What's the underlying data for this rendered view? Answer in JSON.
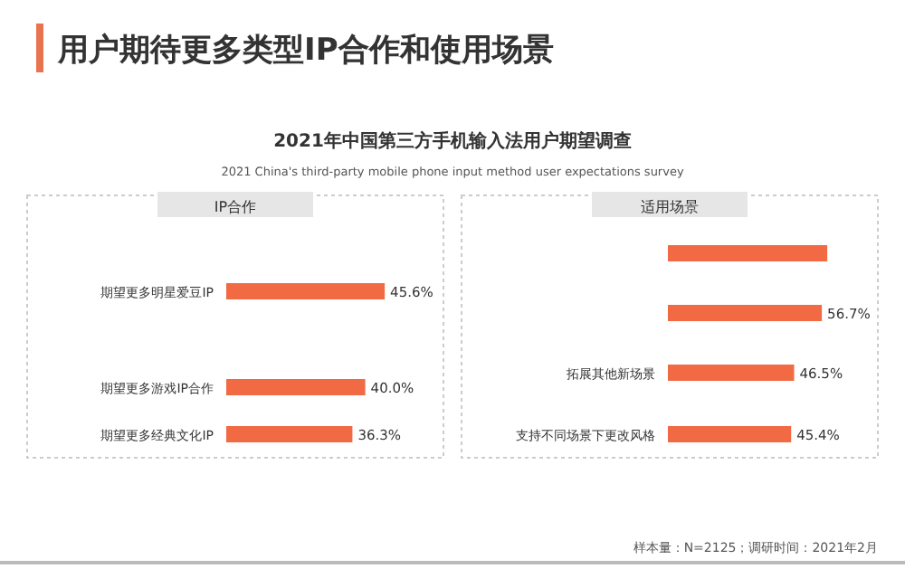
{
  "chart_data": [
    {
      "type": "other",
      "title": "用户期待更多类型IP合作和使用场景",
      "subtitle": "2021年中国第三方手机输入法用户期望调查",
      "annotations": [
        "2021 China's third-party mobile phone input method user expectations survey",
        "样本量：N=2125；调研时间：2021年2月"
      ]
    },
    {
      "type": "bar",
      "orientation": "horizontal",
      "title": "IP合作",
      "categories": [
        null,
        "期望更多明星爱豆IP",
        null,
        "期望更多游戏IP合作",
        "期望更多经典文化IP"
      ],
      "values": [
        null,
        45.6,
        null,
        40.0,
        36.3
      ],
      "color": "#f26a44",
      "value_labels": [
        null,
        "45.6%",
        null,
        "40.0%",
        "36.3%"
      ]
    },
    {
      "type": "bar",
      "orientation": "horizontal",
      "title": "适用场景",
      "categories": [
        null,
        null,
        "拓展其他新场景",
        "支持不同场景下更改风格"
      ],
      "values": [
        58.7,
        56.7,
        46.5,
        45.4
      ],
      "color": "#f26a44",
      "value_labels": [
        null,
        "56.7%",
        "46.5%",
        "45.4%"
      ]
    }
  ]
}
